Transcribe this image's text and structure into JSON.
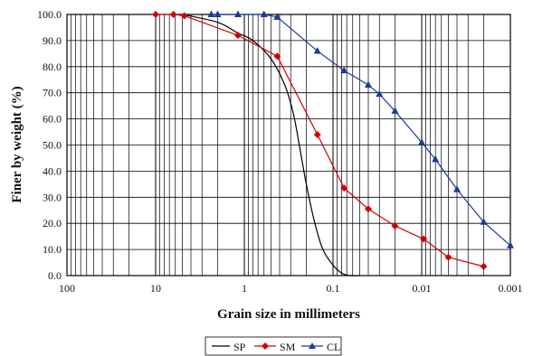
{
  "chart_data": {
    "type": "line",
    "title": "",
    "xlabel": "Grain size in millimeters",
    "ylabel": "Finer by weight (%)",
    "x_scale": "log",
    "x_reversed": true,
    "xlim": [
      100,
      0.001
    ],
    "ylim": [
      0,
      100
    ],
    "x_ticks": [
      100,
      10,
      1,
      0.1,
      0.01,
      0.001
    ],
    "x_tick_labels": [
      "100",
      "10",
      "1",
      "0.1",
      "0.01",
      "0.001"
    ],
    "y_ticks": [
      0,
      10,
      20,
      30,
      40,
      50,
      60,
      70,
      80,
      90,
      100
    ],
    "y_tick_labels": [
      "0.0",
      "10.0",
      "20.0",
      "30.0",
      "40.0",
      "50.0",
      "60.0",
      "70.0",
      "80.0",
      "90.0",
      "100.0"
    ],
    "grid": true,
    "legend_position": "bottom-center",
    "series": [
      {
        "name": "SP",
        "color": "#000000",
        "marker": "none",
        "points": [
          [
            5,
            100
          ],
          [
            2,
            97
          ],
          [
            1.2,
            93
          ],
          [
            0.8,
            90
          ],
          [
            0.5,
            83
          ],
          [
            0.35,
            73
          ],
          [
            0.28,
            62
          ],
          [
            0.24,
            50
          ],
          [
            0.2,
            35
          ],
          [
            0.16,
            20
          ],
          [
            0.13,
            10
          ],
          [
            0.1,
            4
          ],
          [
            0.08,
            1
          ],
          [
            0.065,
            0
          ],
          [
            0.05,
            0
          ]
        ]
      },
      {
        "name": "SM",
        "color": "#d40000",
        "marker": "diamond",
        "points": [
          [
            10,
            100
          ],
          [
            6.3,
            100
          ],
          [
            4.75,
            99.5
          ],
          [
            1.18,
            92
          ],
          [
            0.425,
            84
          ],
          [
            0.15,
            54
          ],
          [
            0.075,
            33.5
          ],
          [
            0.04,
            25.5
          ],
          [
            0.02,
            19
          ],
          [
            0.0095,
            14
          ],
          [
            0.005,
            7
          ],
          [
            0.002,
            3.5
          ]
        ]
      },
      {
        "name": "CL",
        "color": "#1a3a9a",
        "marker": "triangle",
        "points": [
          [
            2.36,
            100
          ],
          [
            2.0,
            100
          ],
          [
            1.18,
            100
          ],
          [
            0.6,
            100
          ],
          [
            0.425,
            99
          ],
          [
            0.15,
            86
          ],
          [
            0.075,
            78.5
          ],
          [
            0.04,
            73
          ],
          [
            0.03,
            69.5
          ],
          [
            0.02,
            63
          ],
          [
            0.01,
            51
          ],
          [
            0.007,
            44.5
          ],
          [
            0.004,
            33
          ],
          [
            0.002,
            20.5
          ],
          [
            0.001,
            11.5
          ]
        ]
      }
    ]
  }
}
